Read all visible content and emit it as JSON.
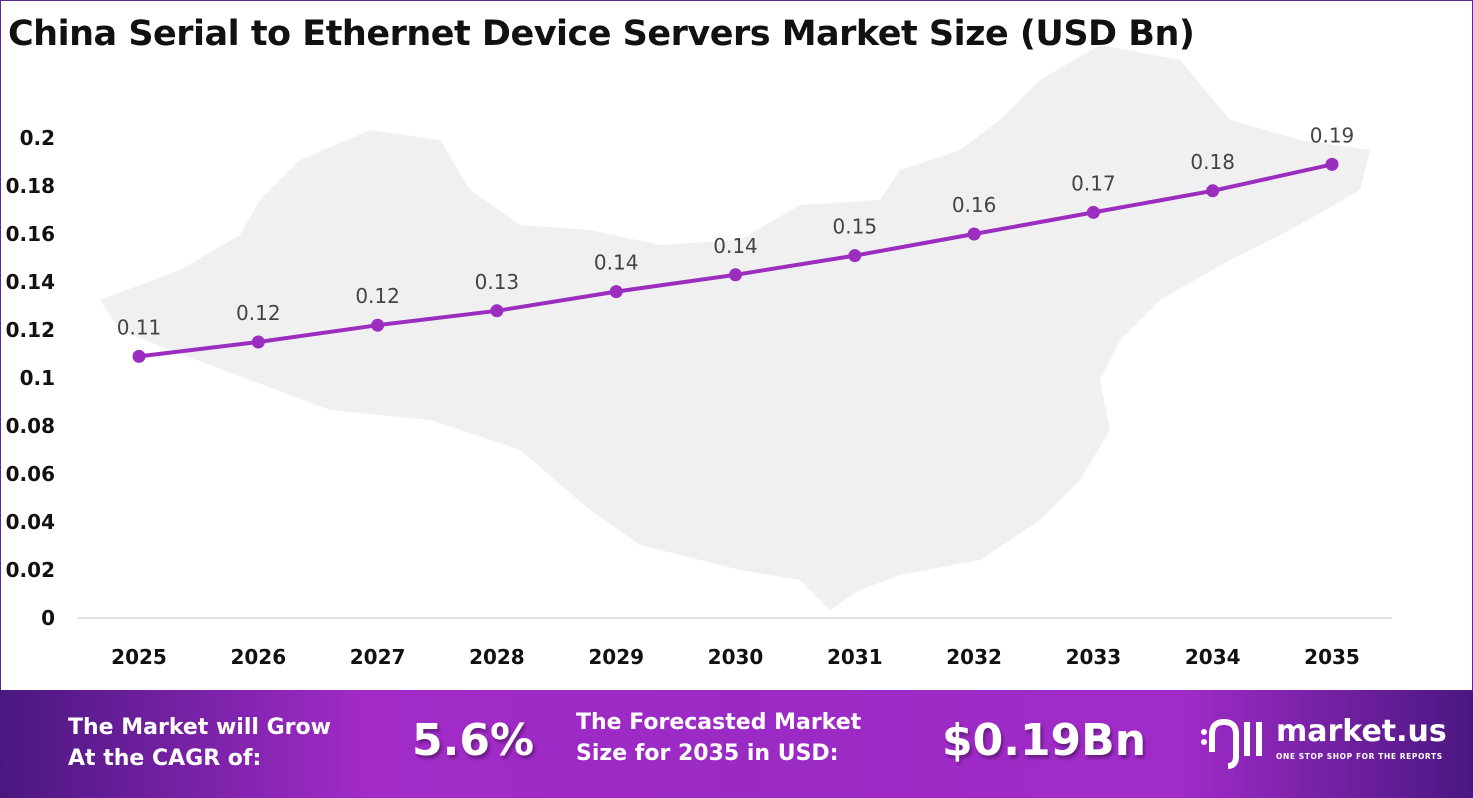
{
  "chart_data": {
    "type": "line",
    "title": "China Serial to Ethernet Device Servers Market Size (USD Bn)",
    "categories": [
      "2025",
      "2026",
      "2027",
      "2028",
      "2029",
      "2030",
      "2031",
      "2032",
      "2033",
      "2034",
      "2035"
    ],
    "values": [
      0.109,
      0.115,
      0.122,
      0.128,
      0.136,
      0.143,
      0.151,
      0.16,
      0.169,
      0.178,
      0.189
    ],
    "data_labels": [
      "0.11",
      "0.12",
      "0.12",
      "0.13",
      "0.14",
      "0.14",
      "0.15",
      "0.16",
      "0.17",
      "0.18",
      "0.19"
    ],
    "y_ticks": [
      "0",
      "0.02",
      "0.04",
      "0.06",
      "0.08",
      "0.1",
      "0.12",
      "0.14",
      "0.16",
      "0.18",
      "0.2"
    ],
    "ylim": [
      0,
      0.2
    ],
    "grid": false,
    "legend": "none",
    "line_color": "#9b2dbf"
  },
  "banner": {
    "cagr_label": [
      "The Market will Grow",
      "At the CAGR of:"
    ],
    "cagr_value": "5.6%",
    "forecast_label": [
      "The Forecasted Market",
      "Size for 2035 in USD:"
    ],
    "forecast_value": "$0.19Bn",
    "brand": "market.us",
    "tagline": "ONE STOP SHOP FOR THE REPORTS"
  }
}
